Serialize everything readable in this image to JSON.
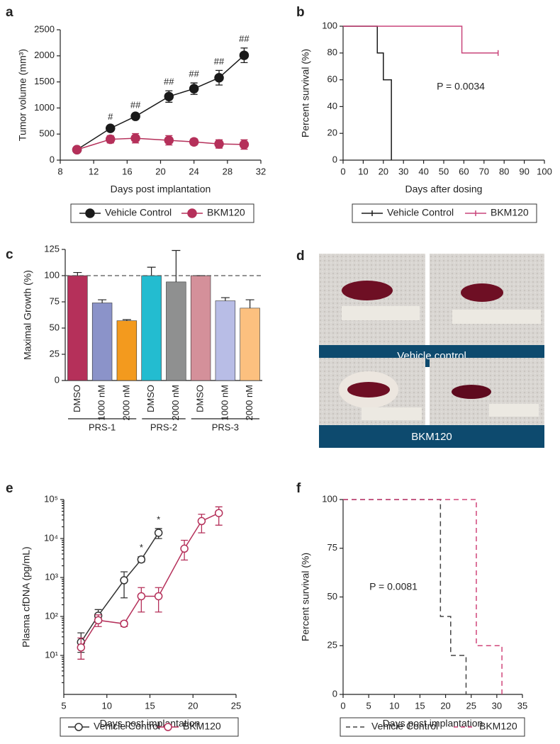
{
  "chart_data": [
    {
      "panel": "a",
      "type": "line",
      "xlabel": "Days post implantation",
      "ylabel": "Tumor volume (mm³)",
      "xlim": [
        8,
        32
      ],
      "xticks": [
        8,
        12,
        16,
        20,
        24,
        28,
        32
      ],
      "ylim": [
        0,
        2500
      ],
      "yticks": [
        0,
        500,
        1000,
        1500,
        2000,
        2500
      ],
      "legend": "bottom",
      "series": [
        {
          "name": "Vehicle Control",
          "color": "#1a1a1a",
          "marker": "filled",
          "x": [
            10,
            14,
            17,
            21,
            24,
            27,
            30
          ],
          "values": [
            200,
            610,
            840,
            1220,
            1370,
            1580,
            2010
          ],
          "errors": [
            30,
            50,
            40,
            110,
            110,
            140,
            140
          ]
        },
        {
          "name": "BKM120",
          "color": "#b5305a",
          "marker": "filled",
          "x": [
            10,
            14,
            17,
            21,
            24,
            27,
            30
          ],
          "values": [
            200,
            400,
            420,
            380,
            350,
            310,
            300
          ],
          "errors": [
            30,
            70,
            90,
            90,
            60,
            80,
            90
          ]
        }
      ],
      "annotations": [
        {
          "x": 14,
          "text": "#"
        },
        {
          "x": 17,
          "text": "##"
        },
        {
          "x": 21,
          "text": "##"
        },
        {
          "x": 24,
          "text": "##"
        },
        {
          "x": 27,
          "text": "##"
        },
        {
          "x": 30,
          "text": "##"
        }
      ]
    },
    {
      "panel": "b",
      "type": "step",
      "xlabel": "Days after dosing",
      "ylabel": "Percent survival (%)",
      "xlim": [
        0,
        100
      ],
      "xticks": [
        0,
        10,
        20,
        30,
        40,
        50,
        60,
        70,
        80,
        90,
        100
      ],
      "ylim": [
        0,
        100
      ],
      "yticks": [
        0,
        20,
        40,
        60,
        80,
        100
      ],
      "legend": "bottom",
      "annotation": "P = 0.0034",
      "series": [
        {
          "name": "Vehicle Control",
          "color": "#1a1a1a",
          "dash": false,
          "x": [
            0,
            17,
            20,
            24
          ],
          "values": [
            100,
            80,
            60,
            0
          ]
        },
        {
          "name": "BKM120",
          "color": "#c9457a",
          "dash": false,
          "x": [
            0,
            59,
            77
          ],
          "values": [
            100,
            80,
            80
          ]
        }
      ]
    },
    {
      "panel": "c",
      "type": "bar",
      "ylabel": "Maximal Growth (%)",
      "ylim": [
        0,
        125
      ],
      "yticks": [
        0,
        25,
        50,
        75,
        100,
        125
      ],
      "reference_line": 100,
      "groups": [
        {
          "name": "PRS-1",
          "categories": [
            "DMSO",
            "1000 nM",
            "2000 nM"
          ],
          "values": [
            100,
            74,
            57
          ],
          "errors": [
            3,
            3,
            1
          ],
          "colors": [
            "#b5305a",
            "#8b93c9",
            "#f39a1e"
          ]
        },
        {
          "name": "PRS-2",
          "categories": [
            "DMSO",
            "2000 nM"
          ],
          "values": [
            100,
            94
          ],
          "errors": [
            8,
            30
          ],
          "colors": [
            "#23bcd0",
            "#8f9090"
          ]
        },
        {
          "name": "PRS-3",
          "categories": [
            "DMSO",
            "1000 nM",
            "2000 nM"
          ],
          "values": [
            100,
            76,
            69
          ],
          "errors": [
            0,
            3,
            8
          ],
          "colors": [
            "#d4909a",
            "#b8bde6",
            "#fcc07f"
          ]
        }
      ]
    },
    {
      "panel": "e",
      "type": "line",
      "log_y": true,
      "xlabel": "Days post implantation",
      "ylabel": "Plasma cfDNA (pg/mL)",
      "xlim": [
        5,
        25
      ],
      "xticks": [
        5,
        10,
        15,
        20,
        25
      ],
      "ylim": [
        1,
        100000
      ],
      "yticks": [
        {
          "value": 10,
          "label": "10¹"
        },
        {
          "value": 100,
          "label": "10²"
        },
        {
          "value": 1000,
          "label": "10³"
        },
        {
          "value": 10000,
          "label": "10⁴"
        },
        {
          "value": 100000,
          "label": "10⁵"
        }
      ],
      "legend": "bottom",
      "series": [
        {
          "name": "Vehicle Control",
          "color": "#333333",
          "marker": "open",
          "x": [
            7,
            9,
            12,
            14,
            16
          ],
          "values": [
            22,
            105,
            850,
            2900,
            14000
          ],
          "lower": [
            12,
            70,
            300,
            2500,
            10000
          ],
          "upper": [
            38,
            150,
            1400,
            3400,
            18000
          ]
        },
        {
          "name": "BKM120",
          "color": "#b5305a",
          "marker": "open",
          "x": [
            7,
            9,
            12,
            14,
            16,
            19,
            21,
            23
          ],
          "values": [
            16,
            80,
            65,
            330,
            330,
            5500,
            28000,
            45000
          ],
          "lower": [
            8,
            55,
            55,
            130,
            130,
            2800,
            14000,
            22000
          ],
          "upper": [
            28,
            110,
            75,
            550,
            550,
            9000,
            42000,
            65000
          ]
        }
      ],
      "annotations": [
        {
          "x": 14,
          "text": "*"
        },
        {
          "x": 16,
          "text": "*"
        }
      ]
    },
    {
      "panel": "f",
      "type": "step",
      "xlabel": "Days post implantation",
      "ylabel": "Percent survival (%)",
      "xlim": [
        0,
        35
      ],
      "xticks": [
        0,
        5,
        10,
        15,
        20,
        25,
        30,
        35
      ],
      "ylim": [
        0,
        100
      ],
      "yticks": [
        0,
        25,
        50,
        75,
        100
      ],
      "legend": "bottom",
      "annotation": "P = 0.0081",
      "series": [
        {
          "name": "Vehicle Control",
          "color": "#444444",
          "dash": true,
          "x": [
            0,
            19,
            21,
            24
          ],
          "values": [
            100,
            40,
            20,
            0
          ]
        },
        {
          "name": "BKM120",
          "color": "#d0457a",
          "dash": true,
          "x": [
            0,
            26,
            31
          ],
          "values": [
            100,
            25,
            0
          ]
        }
      ]
    }
  ],
  "photo_panel": {
    "panel": "d",
    "captions": [
      "Vehicle control",
      "BKM120"
    ]
  }
}
